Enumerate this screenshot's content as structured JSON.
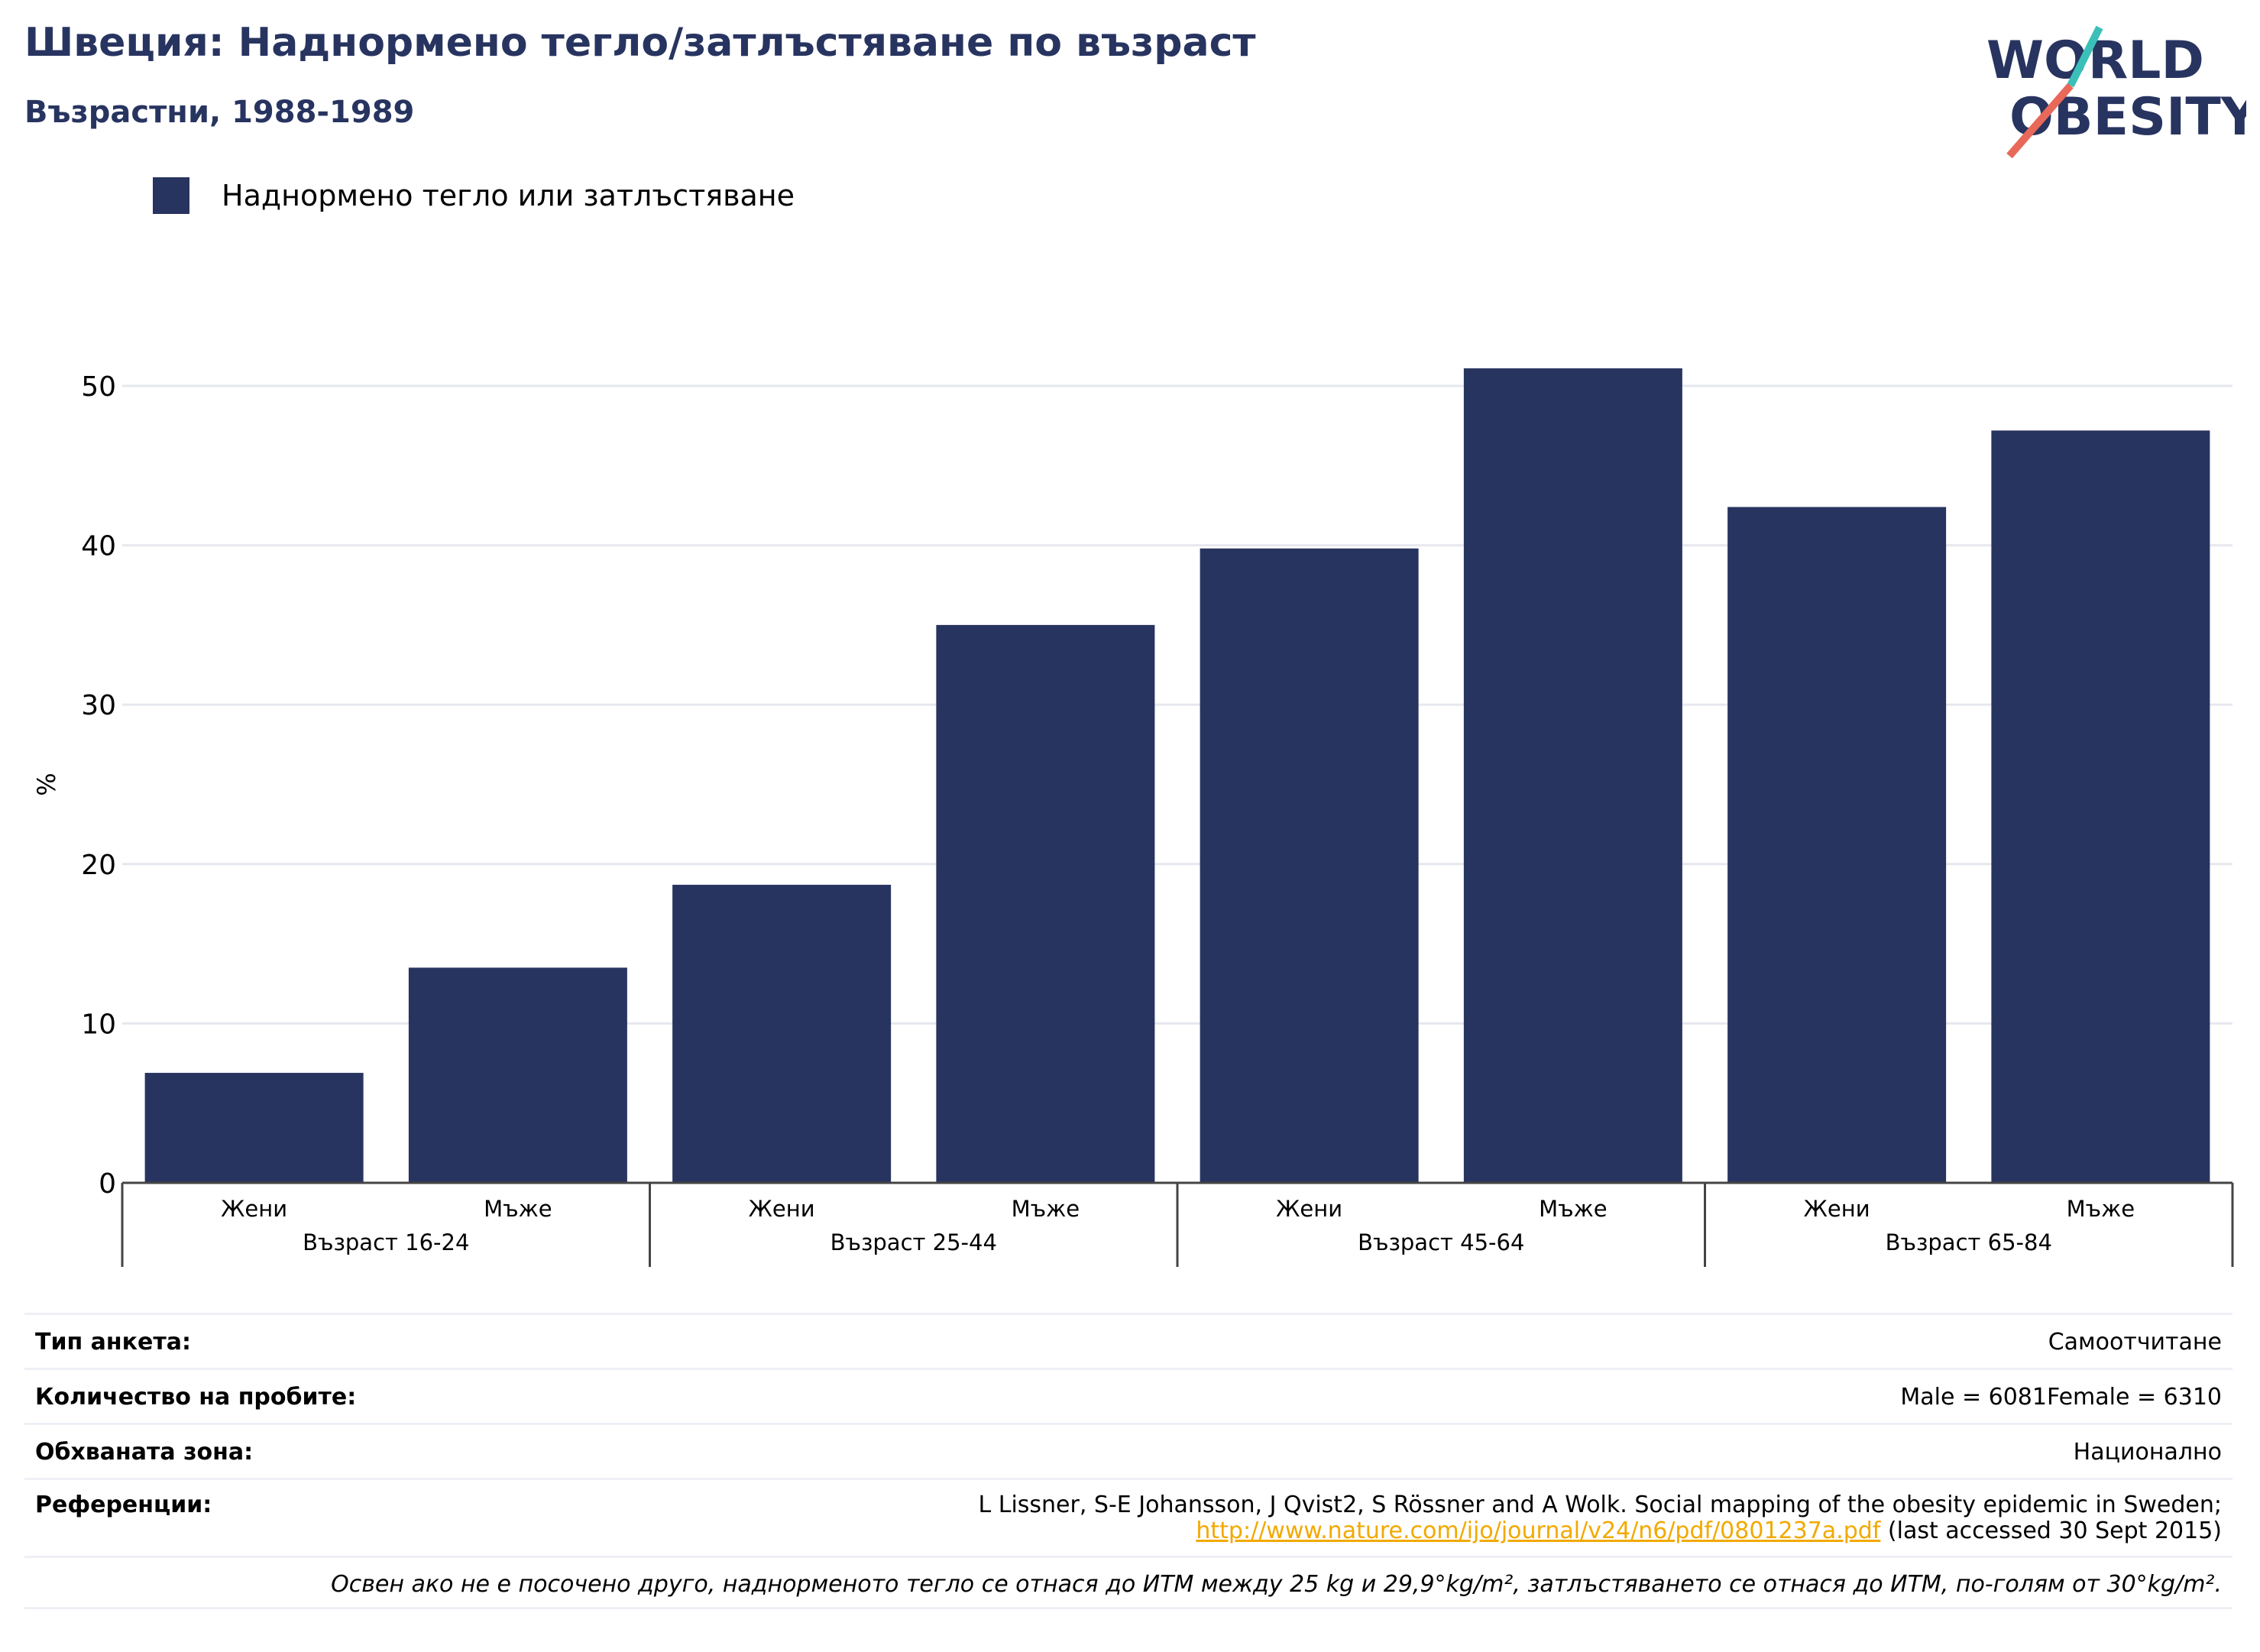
{
  "header": {
    "title": "Швеция: Наднормено тегло/затлъстяване по възраст",
    "subtitle": "Възрастни, 1988-1989"
  },
  "logo": {
    "line1": "WORLD",
    "line2": "OBESITY",
    "colors": [
      "#283460",
      "#e8685a",
      "#3bbfb9"
    ]
  },
  "legend": {
    "label": "Наднормено тегло или затлъстяване",
    "color": "#283460"
  },
  "chart_data": {
    "type": "bar",
    "ylabel": "%",
    "ylim": [
      0,
      55
    ],
    "yticks": [
      0,
      10,
      20,
      30,
      40,
      50
    ],
    "grid": true,
    "legend_position": "top-left",
    "bar_color": "#283460",
    "groups": [
      {
        "label": "Възраст 16-24",
        "categories": [
          "Жени",
          "Мъже"
        ],
        "values": [
          6.9,
          13.5
        ]
      },
      {
        "label": "Възраст 25-44",
        "categories": [
          "Жени",
          "Мъже"
        ],
        "values": [
          18.7,
          35.0
        ]
      },
      {
        "label": "Възраст 45-64",
        "categories": [
          "Жени",
          "Мъже"
        ],
        "values": [
          39.8,
          51.1
        ]
      },
      {
        "label": "Възраст 65-84",
        "categories": [
          "Жени",
          "Мъже"
        ],
        "values": [
          42.4,
          47.2
        ]
      }
    ],
    "series": [
      {
        "name": "Наднормено тегло или затлъстяване"
      }
    ]
  },
  "info": {
    "survey_type_label": "Тип анкета:",
    "survey_type_value": "Самоотчитане",
    "sample_label": "Количество на пробите:",
    "sample_value": "Male = 6081Female = 6310",
    "area_label": "Обхваната зона:",
    "area_value": "Национално",
    "refs_label": "Референции:",
    "refs_text": "L Lissner, S-E Johansson, J Qvist2, S Rössner and A Wolk. Social mapping of the obesity epidemic in Sweden;",
    "refs_link": "http://www.nature.com/ijo/journal/v24/n6/pdf/0801237a.pdf",
    "refs_suffix": " (last accessed 30 Sept 2015)",
    "note": "Освен ако не е посочено друго, наднорменото тегло се отнася до ИТМ между 25 kg и 29,9°kg/m², затлъстяването се отнася до ИТМ, по-голям от 30°kg/m²."
  }
}
